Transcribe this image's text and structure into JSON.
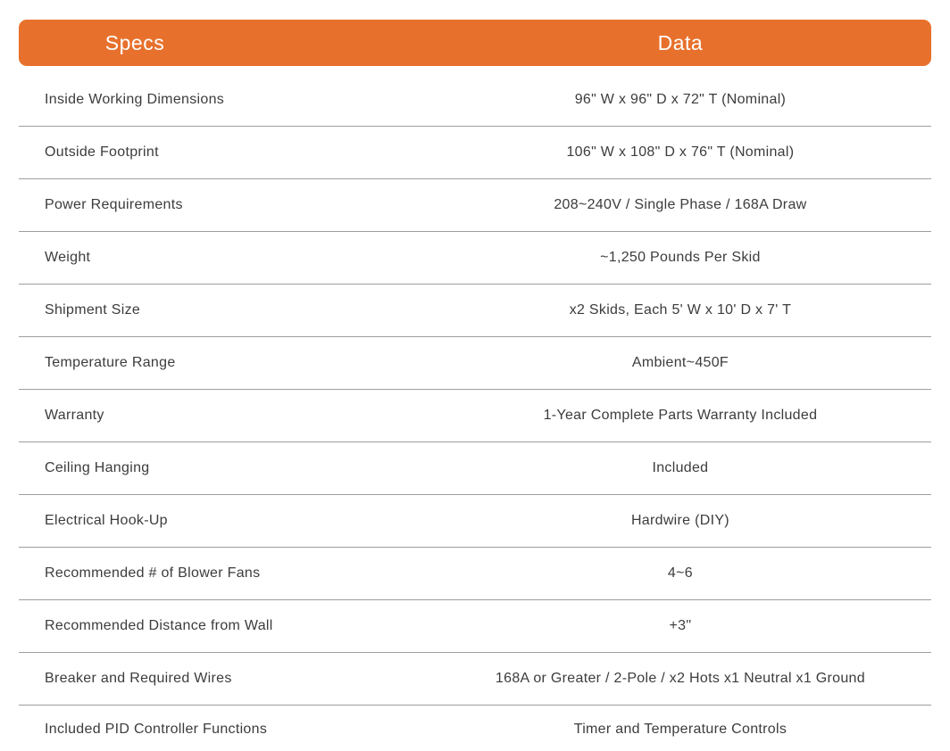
{
  "table": {
    "header": {
      "specs_label": "Specs",
      "data_label": "Data",
      "bg_color": "#E7712C",
      "text_color": "#FFFFFF"
    },
    "rows": [
      {
        "spec": "Inside Working Dimensions",
        "data": "96\" W x 96\" D x 72\" T (Nominal)"
      },
      {
        "spec": "Outside Footprint",
        "data": "106\" W x 108\" D x 76\" T (Nominal)"
      },
      {
        "spec": "Power Requirements",
        "data": "208~240V / Single Phase / 168A Draw"
      },
      {
        "spec": "Weight",
        "data": "~1,250 Pounds Per Skid"
      },
      {
        "spec": "Shipment Size",
        "data": "x2 Skids, Each 5' W x 10' D x 7' T"
      },
      {
        "spec": "Temperature Range",
        "data": "Ambient~450F"
      },
      {
        "spec": "Warranty",
        "data": "1-Year Complete Parts Warranty Included"
      },
      {
        "spec": "Ceiling Hanging",
        "data": "Included"
      },
      {
        "spec": "Electrical Hook-Up",
        "data": "Hardwire (DIY)"
      },
      {
        "spec": "Recommended # of Blower Fans",
        "data": "4~6"
      },
      {
        "spec": "Recommended Distance from Wall",
        "data": "+3\""
      },
      {
        "spec": "Breaker and Required Wires",
        "data": "168A or Greater / 2-Pole / x2 Hots x1 Neutral x1 Ground"
      },
      {
        "spec": "Included PID Controller Functions",
        "data": "Timer and Temperature Controls"
      }
    ],
    "colors": {
      "row_text": "#3C3C3C",
      "divider": "#9E9E9E",
      "bottom_line": "#8697A4",
      "bottom_strip": "#F8FCFE"
    }
  }
}
